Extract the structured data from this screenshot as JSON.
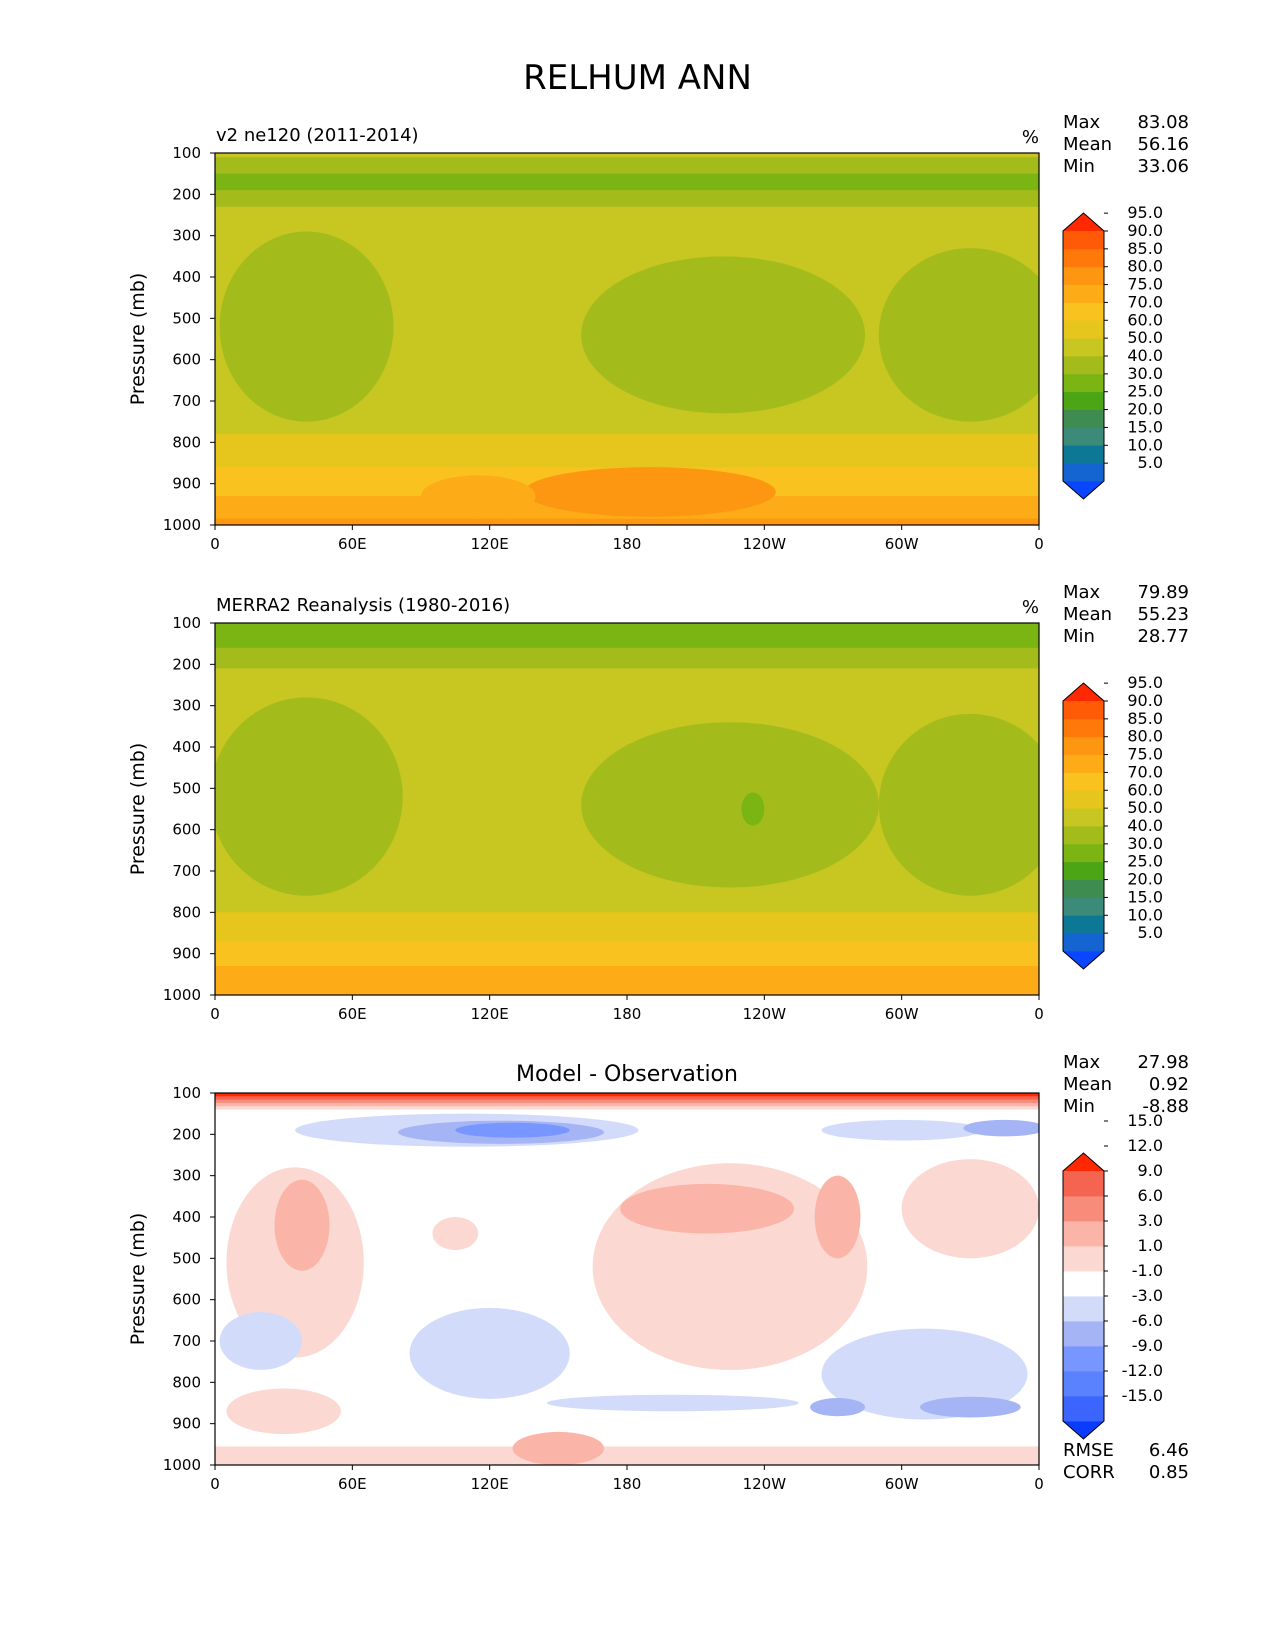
{
  "figure": {
    "title": "RELHUM ANN"
  },
  "chart_data": [
    {
      "type": "heatmap",
      "subtitle": "v2 ne120 (2011-2014)",
      "units": "%",
      "ylabel": "Pressure (mb)",
      "xlabel": "",
      "x_ticks": [
        "0",
        "60E",
        "120E",
        "180",
        "120W",
        "60W",
        "0"
      ],
      "y_ticks": [
        "100",
        "200",
        "300",
        "400",
        "500",
        "600",
        "700",
        "800",
        "900",
        "1000"
      ],
      "xlim": [
        0,
        360
      ],
      "ylim": [
        100,
        1000
      ],
      "stats": [
        {
          "label": "Max",
          "value": "83.08"
        },
        {
          "label": "Mean",
          "value": "56.16"
        },
        {
          "label": "Min",
          "value": "33.06"
        }
      ],
      "colorbar": {
        "colors": [
          "#0a46ff",
          "#1464d2",
          "#0c7896",
          "#3c8a78",
          "#3e8c50",
          "#4ba514",
          "#7ab513",
          "#a4bc1b",
          "#c8c620",
          "#e6c61c",
          "#f9c21e",
          "#fdab17",
          "#fd9610",
          "#fe780a",
          "#ff5a05",
          "#ff2800"
        ],
        "tick_labels": [
          "5.0",
          "10.0",
          "15.0",
          "20.0",
          "25.0",
          "30.0",
          "40.0",
          "50.0",
          "60.0",
          "70.0",
          "75.0",
          "80.0",
          "85.0",
          "90.0",
          "95.0"
        ]
      },
      "bands": [
        {
          "top": 100,
          "bottom": 110,
          "color": "#c8c620"
        },
        {
          "top": 110,
          "bottom": 150,
          "color": "#a4bc1b"
        },
        {
          "top": 150,
          "bottom": 190,
          "color": "#7ab513"
        },
        {
          "top": 190,
          "bottom": 230,
          "color": "#a4bc1b"
        },
        {
          "top": 230,
          "bottom": 780,
          "color": "#c8c620"
        },
        {
          "top": 780,
          "bottom": 860,
          "color": "#e6c61c"
        },
        {
          "top": 860,
          "bottom": 930,
          "color": "#f9c21e"
        },
        {
          "top": 930,
          "bottom": 985,
          "color": "#fdab17"
        },
        {
          "top": 985,
          "bottom": 1000,
          "color": "#fd9610"
        }
      ],
      "blobs": [
        {
          "lon": 40,
          "p": 520,
          "rlon": 38,
          "rp": 230,
          "color": "#a4bc1b"
        },
        {
          "lon": 222,
          "p": 540,
          "rlon": 62,
          "rp": 190,
          "color": "#a4bc1b"
        },
        {
          "lon": 330,
          "p": 540,
          "rlon": 40,
          "rp": 210,
          "color": "#a4bc1b"
        },
        {
          "lon": 190,
          "p": 920,
          "rlon": 55,
          "rp": 60,
          "color": "#fd9610"
        },
        {
          "lon": 115,
          "p": 930,
          "rlon": 25,
          "rp": 50,
          "color": "#fdab17"
        }
      ]
    },
    {
      "type": "heatmap",
      "subtitle": "MERRA2 Reanalysis (1980-2016)",
      "units": "%",
      "ylabel": "Pressure (mb)",
      "xlabel": "",
      "x_ticks": [
        "0",
        "60E",
        "120E",
        "180",
        "120W",
        "60W",
        "0"
      ],
      "y_ticks": [
        "100",
        "200",
        "300",
        "400",
        "500",
        "600",
        "700",
        "800",
        "900",
        "1000"
      ],
      "xlim": [
        0,
        360
      ],
      "ylim": [
        100,
        1000
      ],
      "stats": [
        {
          "label": "Max",
          "value": "79.89"
        },
        {
          "label": "Mean",
          "value": "55.23"
        },
        {
          "label": "Min",
          "value": "28.77"
        }
      ],
      "colorbar": {
        "colors": [
          "#0a46ff",
          "#1464d2",
          "#0c7896",
          "#3c8a78",
          "#3e8c50",
          "#4ba514",
          "#7ab513",
          "#a4bc1b",
          "#c8c620",
          "#e6c61c",
          "#f9c21e",
          "#fdab17",
          "#fd9610",
          "#fe780a",
          "#ff5a05",
          "#ff2800"
        ],
        "tick_labels": [
          "5.0",
          "10.0",
          "15.0",
          "20.0",
          "25.0",
          "30.0",
          "40.0",
          "50.0",
          "60.0",
          "70.0",
          "75.0",
          "80.0",
          "85.0",
          "90.0",
          "95.0"
        ]
      },
      "bands": [
        {
          "top": 100,
          "bottom": 160,
          "color": "#7ab513"
        },
        {
          "top": 160,
          "bottom": 210,
          "color": "#a4bc1b"
        },
        {
          "top": 210,
          "bottom": 800,
          "color": "#c8c620"
        },
        {
          "top": 800,
          "bottom": 870,
          "color": "#e6c61c"
        },
        {
          "top": 870,
          "bottom": 930,
          "color": "#f9c21e"
        },
        {
          "top": 930,
          "bottom": 1000,
          "color": "#fdab17"
        }
      ],
      "blobs": [
        {
          "lon": 40,
          "p": 520,
          "rlon": 42,
          "rp": 240,
          "color": "#a4bc1b"
        },
        {
          "lon": 225,
          "p": 540,
          "rlon": 65,
          "rp": 200,
          "color": "#a4bc1b"
        },
        {
          "lon": 330,
          "p": 540,
          "rlon": 40,
          "rp": 220,
          "color": "#a4bc1b"
        },
        {
          "lon": 235,
          "p": 550,
          "rlon": 5,
          "rp": 40,
          "color": "#7ab513"
        }
      ]
    },
    {
      "type": "heatmap",
      "subtitle": "Model - Observation",
      "units": "",
      "ylabel": "Pressure (mb)",
      "xlabel": "",
      "x_ticks": [
        "0",
        "60E",
        "120E",
        "180",
        "120W",
        "60W",
        "0"
      ],
      "y_ticks": [
        "100",
        "200",
        "300",
        "400",
        "500",
        "600",
        "700",
        "800",
        "900",
        "1000"
      ],
      "xlim": [
        0,
        360
      ],
      "ylim": [
        100,
        1000
      ],
      "stats": [
        {
          "label": "Max",
          "value": "27.98"
        },
        {
          "label": "Mean",
          "value": "0.92"
        },
        {
          "label": "Min",
          "value": "-8.88"
        }
      ],
      "metrics": [
        {
          "label": "RMSE",
          "value": "6.46"
        },
        {
          "label": "CORR",
          "value": "0.85"
        }
      ],
      "colorbar": {
        "colors": [
          "#0a3cff",
          "#3c64ff",
          "#5a82ff",
          "#7896ff",
          "#a5b4f5",
          "#d2dcfa",
          "#ffffff",
          "#fbd8d2",
          "#fbb4a8",
          "#f88c7a",
          "#f46450",
          "#ff2800"
        ],
        "tick_labels": [
          "-15.0",
          "-12.0",
          "-9.0",
          "-6.0",
          "-3.0",
          "-1.0",
          "1.0",
          "3.0",
          "6.0",
          "9.0",
          "12.0",
          "15.0"
        ]
      },
      "bands": [
        {
          "top": 100,
          "bottom": 108,
          "color": "#ff2800"
        },
        {
          "top": 108,
          "bottom": 116,
          "color": "#f46450"
        },
        {
          "top": 116,
          "bottom": 124,
          "color": "#f88c7a"
        },
        {
          "top": 124,
          "bottom": 132,
          "color": "#fbb4a8"
        },
        {
          "top": 132,
          "bottom": 140,
          "color": "#fbd8d2"
        },
        {
          "top": 140,
          "bottom": 955,
          "color": "#ffffff"
        },
        {
          "top": 955,
          "bottom": 1000,
          "color": "#fbd8d2"
        }
      ],
      "blobs": [
        {
          "lon": 110,
          "p": 190,
          "rlon": 75,
          "rp": 40,
          "color": "#d2dcfa"
        },
        {
          "lon": 125,
          "p": 195,
          "rlon": 45,
          "rp": 28,
          "color": "#a5b4f5"
        },
        {
          "lon": 130,
          "p": 190,
          "rlon": 25,
          "rp": 18,
          "color": "#7896ff"
        },
        {
          "lon": 300,
          "p": 190,
          "rlon": 35,
          "rp": 25,
          "color": "#d2dcfa"
        },
        {
          "lon": 345,
          "p": 185,
          "rlon": 18,
          "rp": 20,
          "color": "#a5b4f5"
        },
        {
          "lon": 35,
          "p": 510,
          "rlon": 30,
          "rp": 230,
          "color": "#fbd8d2"
        },
        {
          "lon": 38,
          "p": 420,
          "rlon": 12,
          "rp": 110,
          "color": "#fbb4a8"
        },
        {
          "lon": 225,
          "p": 520,
          "rlon": 60,
          "rp": 250,
          "color": "#fbd8d2"
        },
        {
          "lon": 215,
          "p": 380,
          "rlon": 38,
          "rp": 60,
          "color": "#fbb4a8"
        },
        {
          "lon": 272,
          "p": 400,
          "rlon": 10,
          "rp": 100,
          "color": "#fbb4a8"
        },
        {
          "lon": 330,
          "p": 380,
          "rlon": 30,
          "rp": 120,
          "color": "#fbd8d2"
        },
        {
          "lon": 105,
          "p": 440,
          "rlon": 10,
          "rp": 40,
          "color": "#fbd8d2"
        },
        {
          "lon": 20,
          "p": 700,
          "rlon": 18,
          "rp": 70,
          "color": "#d2dcfa"
        },
        {
          "lon": 120,
          "p": 730,
          "rlon": 35,
          "rp": 110,
          "color": "#d2dcfa"
        },
        {
          "lon": 310,
          "p": 780,
          "rlon": 45,
          "rp": 110,
          "color": "#d2dcfa"
        },
        {
          "lon": 272,
          "p": 860,
          "rlon": 12,
          "rp": 22,
          "color": "#a5b4f5"
        },
        {
          "lon": 330,
          "p": 860,
          "rlon": 22,
          "rp": 25,
          "color": "#a5b4f5"
        },
        {
          "lon": 200,
          "p": 850,
          "rlon": 55,
          "rp": 20,
          "color": "#d2dcfa"
        },
        {
          "lon": 30,
          "p": 870,
          "rlon": 25,
          "rp": 55,
          "color": "#fbd8d2"
        },
        {
          "lon": 150,
          "p": 960,
          "rlon": 20,
          "rp": 40,
          "color": "#fbb4a8"
        }
      ]
    }
  ]
}
